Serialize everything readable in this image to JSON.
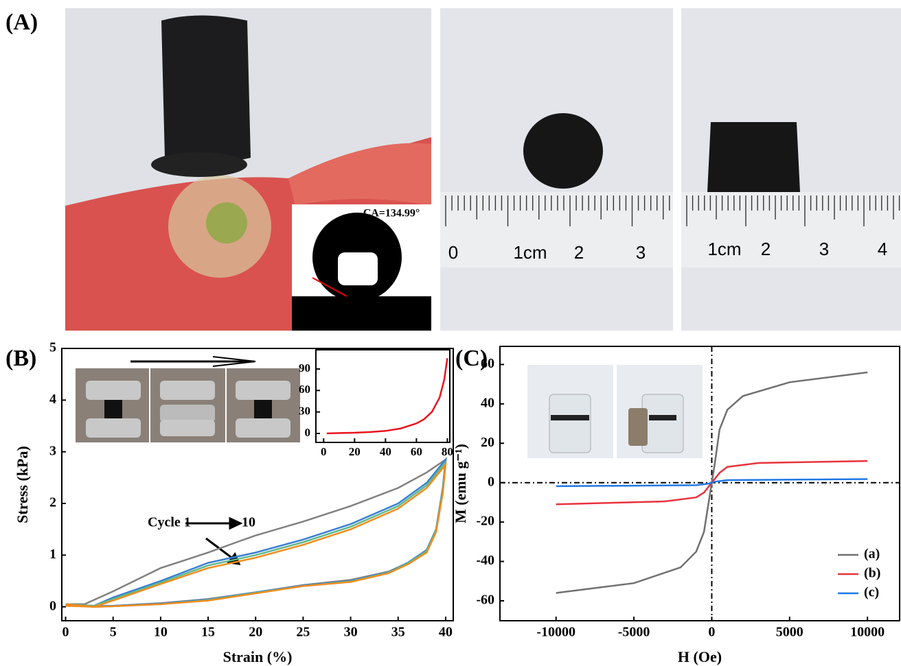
{
  "panel_labels": [
    "(A)",
    "(B)",
    "(C)"
  ],
  "panel_a": {
    "contact_angle": "CA=134.99°",
    "ruler_1": [
      "0",
      "1cm",
      "2",
      "3"
    ],
    "ruler_2": [
      "1cm",
      "2",
      "3",
      "4"
    ]
  },
  "chart_data": [
    {
      "type": "line",
      "xlabel": "Strain (%)",
      "ylabel": "Stress (kPa)",
      "xlim": [
        -0.4,
        40.8
      ],
      "ylim": [
        -0.27,
        5
      ],
      "xticks": [
        0,
        5,
        10,
        15,
        20,
        25,
        30,
        35,
        40
      ],
      "yticks": [
        0,
        1,
        2,
        3,
        4,
        5
      ],
      "annotations": [
        "Cycle 1",
        "10"
      ],
      "series": [
        {
          "color": "#808080",
          "x": [
            0,
            2,
            5,
            10,
            15,
            18,
            20,
            25,
            30,
            35,
            38,
            40,
            39.7,
            39,
            38,
            36,
            34,
            30,
            25,
            20,
            15,
            10,
            5,
            3,
            0
          ],
          "values": [
            0.05,
            0.05,
            0.3,
            0.75,
            1.05,
            1.25,
            1.38,
            1.65,
            1.95,
            2.3,
            2.6,
            2.85,
            2.3,
            1.5,
            1.1,
            0.85,
            0.68,
            0.52,
            0.42,
            0.28,
            0.15,
            0.07,
            0.02,
            0.01,
            0.03
          ]
        },
        {
          "color": "#3a7fd5",
          "x": [
            0,
            3,
            5,
            10,
            15,
            20,
            25,
            30,
            35,
            38,
            40,
            39.7,
            39,
            38,
            36,
            34,
            30,
            25,
            20,
            15,
            10,
            5,
            3,
            0
          ],
          "values": [
            0.05,
            0.02,
            0.18,
            0.5,
            0.85,
            1.05,
            1.3,
            1.6,
            2.0,
            2.4,
            2.85,
            2.3,
            1.5,
            1.1,
            0.85,
            0.67,
            0.5,
            0.41,
            0.28,
            0.14,
            0.06,
            0.02,
            0.01,
            0.05
          ]
        },
        {
          "color": "#5fb88a",
          "x": [
            0,
            3,
            5,
            10,
            15,
            20,
            25,
            30,
            35,
            38,
            40,
            39.7,
            39,
            38,
            36,
            34,
            30,
            25,
            20,
            15,
            10,
            5,
            3,
            0
          ],
          "values": [
            0.05,
            0.02,
            0.15,
            0.47,
            0.8,
            1.0,
            1.25,
            1.55,
            1.95,
            2.35,
            2.8,
            2.25,
            1.48,
            1.08,
            0.84,
            0.66,
            0.49,
            0.4,
            0.27,
            0.13,
            0.05,
            0.01,
            0.0,
            0.04
          ]
        },
        {
          "color": "#f08c1e",
          "x": [
            0,
            3,
            5,
            10,
            15,
            20,
            25,
            30,
            35,
            38,
            40,
            39.7,
            39,
            38,
            36,
            34,
            30,
            25,
            20,
            15,
            10,
            5,
            3,
            0
          ],
          "values": [
            0.05,
            0.0,
            0.12,
            0.44,
            0.75,
            0.95,
            1.2,
            1.5,
            1.9,
            2.3,
            2.75,
            2.2,
            1.45,
            1.05,
            0.82,
            0.65,
            0.48,
            0.4,
            0.26,
            0.12,
            0.05,
            0.01,
            0.0,
            0.02
          ]
        }
      ]
    },
    {
      "type": "line",
      "xlim": [
        -5,
        81.6
      ],
      "ylim": [
        -12.5,
        116.8
      ],
      "xticks": [
        0,
        20,
        40,
        60,
        80
      ],
      "yticks": [
        0,
        30,
        60,
        90
      ],
      "series": [
        {
          "color": "#e8141e",
          "x": [
            2,
            10,
            20,
            30,
            40,
            50,
            60,
            65,
            70,
            75,
            78,
            80
          ],
          "values": [
            0,
            0.5,
            1,
            2,
            3.5,
            7,
            14,
            20,
            30,
            50,
            75,
            105
          ]
        }
      ]
    },
    {
      "type": "line",
      "xlabel": "H (Oe)",
      "ylabel": "M (emu g⁻¹)",
      "xlim": [
        -13604,
        12066
      ],
      "ylim": [
        -70.1,
        69.2
      ],
      "xticks": [
        -10000,
        -5000,
        0,
        5000,
        10000
      ],
      "yticks": [
        -60,
        -40,
        -20,
        0,
        20,
        40,
        60
      ],
      "reference_lines": {
        "x": 0,
        "y": 0
      },
      "legend": "lower right",
      "series": [
        {
          "name": "(a)",
          "color": "#707070",
          "x": [
            -10000,
            -5000,
            -2000,
            -1000,
            -500,
            -200,
            0,
            200,
            500,
            1000,
            2000,
            5000,
            10000
          ],
          "values": [
            -56,
            -51,
            -43,
            -35,
            -25,
            -10,
            0,
            10,
            27,
            37,
            44,
            51,
            56
          ]
        },
        {
          "name": "(b)",
          "color": "#e8323c",
          "x": [
            -10000,
            -3000,
            -1000,
            -500,
            -200,
            0,
            200,
            500,
            1000,
            3000,
            10000
          ],
          "values": [
            -11,
            -9.5,
            -7.5,
            -5,
            -2,
            0,
            2,
            5,
            8,
            10,
            11
          ]
        },
        {
          "name": "(c)",
          "color": "#1e78e6",
          "x": [
            -10000,
            -1000,
            -200,
            0,
            200,
            1000,
            10000
          ],
          "values": [
            -1.8,
            -1.3,
            -0.5,
            0,
            0.5,
            1.3,
            1.8
          ]
        }
      ]
    }
  ]
}
